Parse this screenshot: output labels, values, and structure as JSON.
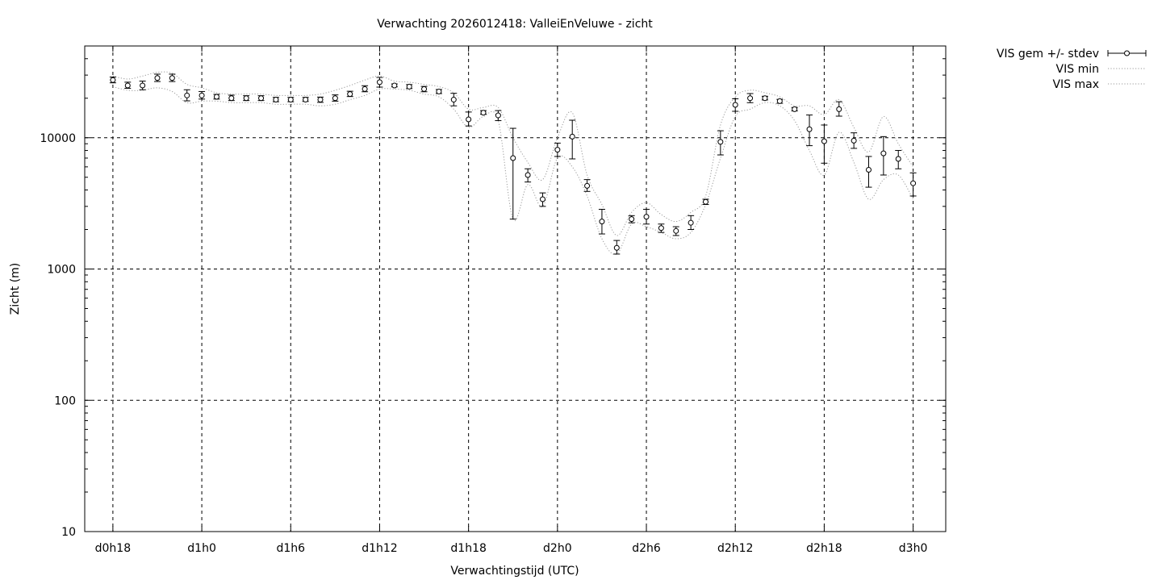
{
  "chart_data": {
    "type": "line",
    "title": "Verwachting 2026012418: ValleiEnVeluwe - zicht",
    "xlabel": "Verwachtingstijd (UTC)",
    "ylabel": "Zicht (m)",
    "y_scale": "log",
    "ylim": [
      10,
      50000
    ],
    "xlim": [
      -1.9,
      56.2
    ],
    "grid": true,
    "legend_position": "outside-top-right",
    "x_ticks": [
      {
        "x": 0,
        "label": "d0h18"
      },
      {
        "x": 6,
        "label": "d1h0"
      },
      {
        "x": 12,
        "label": "d1h6"
      },
      {
        "x": 18,
        "label": "d1h12"
      },
      {
        "x": 24,
        "label": "d1h18"
      },
      {
        "x": 30,
        "label": "d2h0"
      },
      {
        "x": 36,
        "label": "d2h6"
      },
      {
        "x": 42,
        "label": "d2h12"
      },
      {
        "x": 48,
        "label": "d2h18"
      },
      {
        "x": 54,
        "label": "d3h0"
      }
    ],
    "y_ticks": [
      {
        "y": 10,
        "label": "10"
      },
      {
        "y": 100,
        "label": "100"
      },
      {
        "y": 1000,
        "label": "1000"
      },
      {
        "y": 10000,
        "label": "10000"
      }
    ],
    "series": [
      {
        "name": "VIS gem +/- stdev",
        "style": "errorbars",
        "x": [
          0,
          1,
          2,
          3,
          4,
          5,
          6,
          7,
          8,
          9,
          10,
          11,
          12,
          13,
          14,
          15,
          16,
          17,
          18,
          19,
          20,
          21,
          22,
          23,
          24,
          25,
          26,
          27,
          28,
          29,
          30,
          31,
          32,
          33,
          34,
          35,
          36,
          37,
          38,
          39,
          40,
          41,
          42,
          43,
          44,
          45,
          46,
          47,
          48,
          49,
          50,
          51,
          52,
          53,
          54
        ],
        "mean": [
          27500,
          25000,
          25000,
          28500,
          28500,
          21000,
          21000,
          20500,
          20000,
          20000,
          20000,
          19500,
          19500,
          19500,
          19500,
          20000,
          21500,
          23500,
          26500,
          25000,
          24500,
          23500,
          22500,
          19500,
          13800,
          15500,
          14800,
          7000,
          5200,
          3400,
          8100,
          10200,
          4300,
          2300,
          1450,
          2400,
          2500,
          2050,
          1950,
          2250,
          3250,
          9300,
          17800,
          20000,
          20000,
          19000,
          16500,
          11600,
          9400,
          16500,
          9500,
          5700,
          7600,
          6900,
          4500
        ],
        "low": [
          26200,
          23800,
          23200,
          26800,
          26800,
          19100,
          19700,
          19700,
          19200,
          19200,
          19200,
          18800,
          18800,
          18900,
          18600,
          19000,
          20600,
          22400,
          24300,
          24400,
          23700,
          22400,
          21700,
          17500,
          12300,
          15100,
          13500,
          2400,
          4600,
          3000,
          7200,
          6900,
          3900,
          1850,
          1300,
          2250,
          2200,
          1900,
          1800,
          2000,
          3100,
          7400,
          15900,
          18500,
          19400,
          18300,
          16000,
          8700,
          6400,
          14600,
          8300,
          4200,
          5200,
          5800,
          3600
        ],
        "high": [
          29000,
          26500,
          27000,
          30500,
          30500,
          23200,
          22500,
          21400,
          21100,
          20900,
          20900,
          20300,
          20300,
          20300,
          20400,
          21200,
          22600,
          24900,
          28800,
          25700,
          25400,
          24600,
          23300,
          21800,
          15700,
          16100,
          16100,
          11800,
          5800,
          3800,
          9100,
          13600,
          4800,
          2850,
          1650,
          2550,
          2850,
          2200,
          2100,
          2550,
          3400,
          11300,
          19800,
          21700,
          20700,
          19600,
          17000,
          14900,
          12500,
          18800,
          10900,
          7200,
          10200,
          8000,
          5400
        ]
      },
      {
        "name": "VIS min",
        "style": "dotted",
        "x": [
          0,
          1,
          2,
          3,
          4,
          5,
          6,
          7,
          8,
          9,
          10,
          11,
          12,
          13,
          14,
          15,
          16,
          17,
          18,
          19,
          20,
          21,
          22,
          23,
          24,
          25,
          26,
          27,
          28,
          29,
          30,
          31,
          32,
          33,
          34,
          35,
          36,
          37,
          38,
          39,
          40,
          41,
          42,
          43,
          44,
          45,
          46,
          47,
          48,
          49,
          50,
          51,
          52,
          53,
          54
        ],
        "values": [
          24500,
          23000,
          23000,
          24000,
          22500,
          18500,
          19000,
          19000,
          18500,
          18500,
          18500,
          18000,
          18000,
          18000,
          17500,
          18000,
          19500,
          21000,
          23500,
          23500,
          23000,
          21500,
          20500,
          16500,
          12000,
          14500,
          13500,
          2400,
          4400,
          3000,
          7000,
          6000,
          3600,
          1700,
          1300,
          2200,
          2100,
          1900,
          1700,
          1900,
          3100,
          7000,
          14500,
          16500,
          18500,
          17500,
          13500,
          8000,
          5200,
          11000,
          6500,
          3400,
          4800,
          5200,
          3400
        ]
      },
      {
        "name": "VIS max",
        "style": "dotted",
        "x": [
          0,
          1,
          2,
          3,
          4,
          5,
          6,
          7,
          8,
          9,
          10,
          11,
          12,
          13,
          14,
          15,
          16,
          17,
          18,
          19,
          20,
          21,
          22,
          23,
          24,
          25,
          26,
          27,
          28,
          29,
          30,
          31,
          32,
          33,
          34,
          35,
          36,
          37,
          38,
          39,
          40,
          41,
          42,
          43,
          44,
          45,
          46,
          47,
          48,
          49,
          50,
          51,
          52,
          53,
          54
        ],
        "values": [
          29500,
          28000,
          29500,
          31500,
          31000,
          25500,
          24000,
          22000,
          21500,
          21500,
          21500,
          21000,
          21000,
          21000,
          21500,
          23000,
          25000,
          27500,
          29500,
          27000,
          26500,
          25500,
          24500,
          22000,
          16500,
          17000,
          17000,
          10000,
          6500,
          4800,
          10000,
          15500,
          5200,
          3100,
          1800,
          2700,
          3200,
          2600,
          2300,
          2700,
          3600,
          12500,
          20500,
          23000,
          22000,
          20500,
          17500,
          17500,
          15000,
          19500,
          12000,
          7800,
          14500,
          9000,
          6000
        ]
      }
    ]
  }
}
